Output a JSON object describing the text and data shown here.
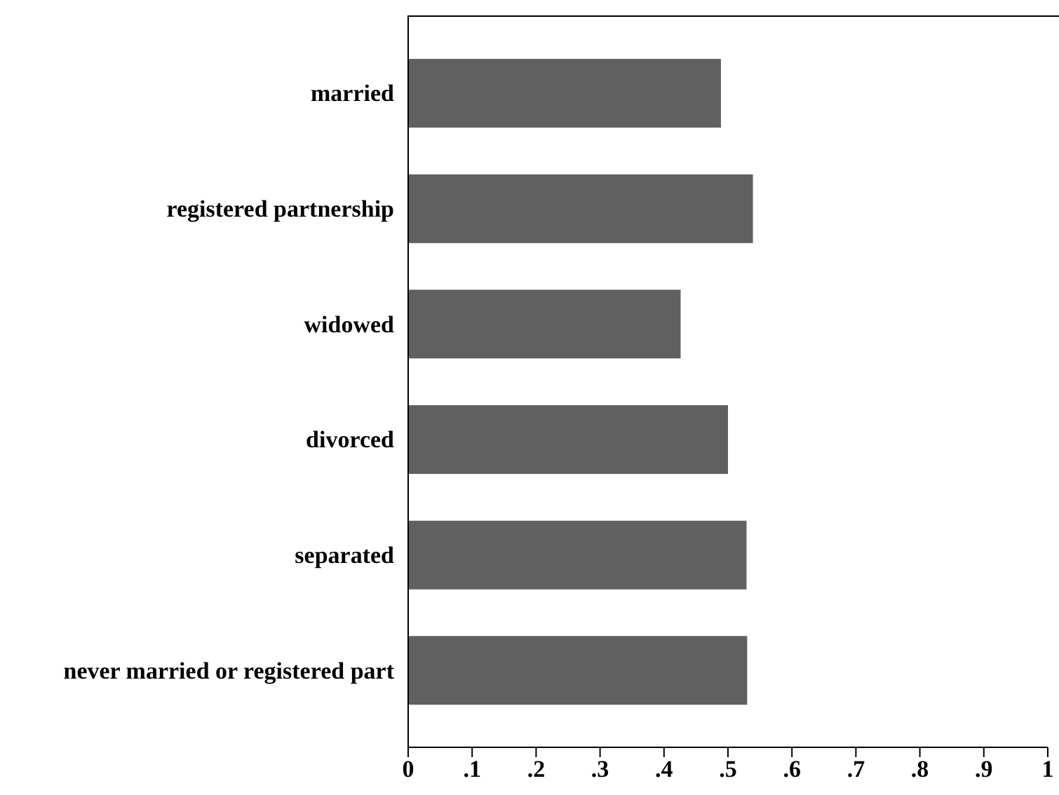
{
  "chart_data": {
    "type": "bar",
    "orientation": "horizontal",
    "categories": [
      "married",
      "registered partnership",
      "widowed",
      "divorced",
      "separated",
      "never married or registered part"
    ],
    "values": [
      0.489,
      0.539,
      0.426,
      0.5,
      0.529,
      0.53
    ],
    "color": "#606060",
    "xlim": [
      0,
      1
    ],
    "xticks": [
      0,
      {
        "value": 0.1,
        "label": ".1"
      },
      {
        "value": 0.2,
        "label": ".2"
      },
      {
        "value": 0.3,
        "label": ".3"
      },
      {
        "value": 0.4,
        "label": ".4"
      },
      {
        "value": 0.5,
        "label": ".5"
      },
      {
        "value": 0.6,
        "label": ".6"
      },
      {
        "value": 0.7,
        "label": ".7"
      },
      {
        "value": 0.8,
        "label": ".8"
      },
      {
        "value": 0.9,
        "label": ".9"
      },
      1
    ],
    "grid": false
  }
}
